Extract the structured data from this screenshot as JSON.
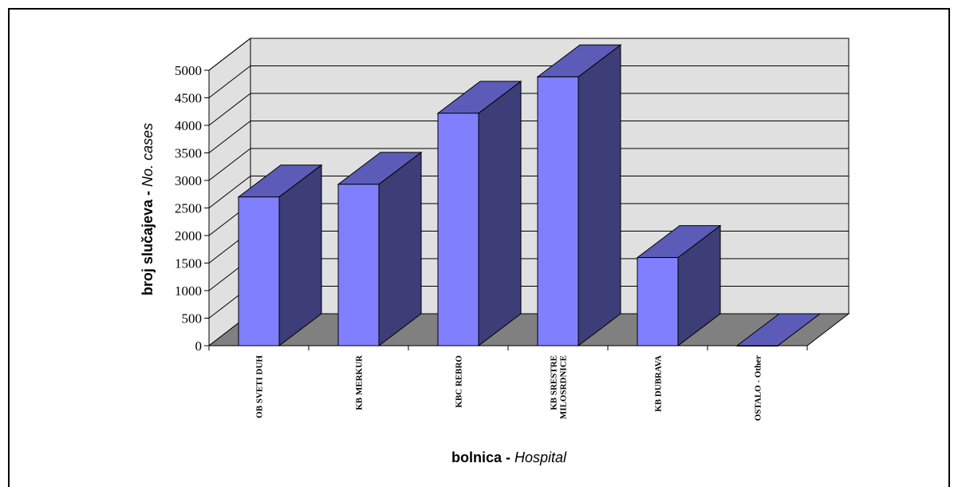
{
  "chart_data": {
    "type": "bar",
    "three_d": true,
    "categories": [
      "OB SVETI DUH",
      "KB MERKUR",
      "KBC REBRO",
      "KB SRESTRE MILOSRDNICE",
      "KB DUBRAVA",
      "OSTALO - Other"
    ],
    "category_lines": [
      [
        "OB SVETI DUH"
      ],
      [
        "KB MERKUR"
      ],
      [
        "KBC REBRO"
      ],
      [
        "KB SRESTRE",
        "MILOSRDNICE"
      ],
      [
        "KB DUBRAVA"
      ],
      [
        "OSTALO - Other"
      ]
    ],
    "values": [
      2700,
      2930,
      4220,
      4880,
      1600,
      0
    ],
    "ylim": [
      0,
      5000
    ],
    "yticks": [
      0,
      500,
      1000,
      1500,
      2000,
      2500,
      3000,
      3500,
      4000,
      4500,
      5000
    ],
    "ylabel_main": "broj slučajeva -",
    "ylabel_sub": "No. cases",
    "xlabel_main": "bolnica -",
    "xlabel_sub": "Hospital",
    "grid": true,
    "colors": {
      "bar_front": "#8080ff",
      "bar_top": "#5c5cb8",
      "bar_side": "#3d3d78",
      "back_wall": "#e0e0e0",
      "floor": "#808080"
    }
  }
}
